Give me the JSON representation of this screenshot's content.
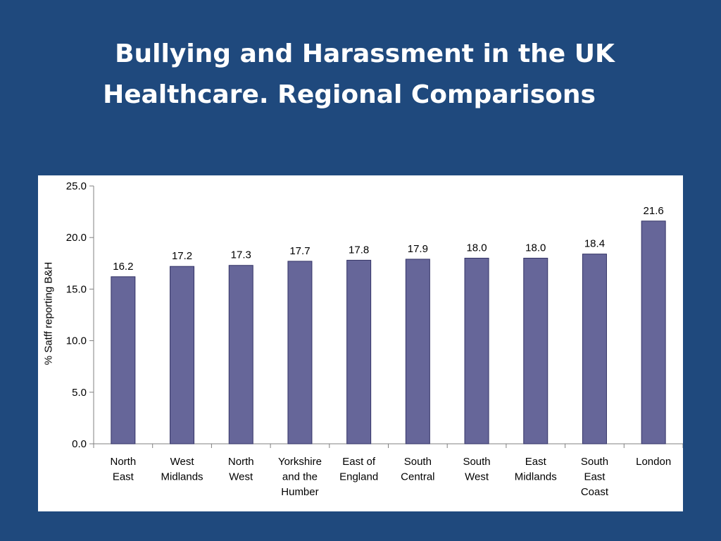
{
  "slide": {
    "title_line1": "Bullying and Harassment in the UK",
    "title_line2": "Healthcare.  Regional Comparisons"
  },
  "colors": {
    "background": "#1f497d",
    "bar": "#666699",
    "bar_outline": "#333366"
  },
  "chart_data": {
    "type": "bar",
    "title": "",
    "xlabel": "",
    "ylabel": "% Satff reporting B&H",
    "ylim": [
      0,
      25
    ],
    "yticks": [
      "0.0",
      "5.0",
      "10.0",
      "15.0",
      "20.0",
      "25.0"
    ],
    "grid": false,
    "categories": [
      [
        "North",
        "East"
      ],
      [
        "West",
        "Midlands"
      ],
      [
        "North",
        "West"
      ],
      [
        "Yorkshire",
        "and the",
        "Humber"
      ],
      [
        "East of",
        "England"
      ],
      [
        "South",
        "Central"
      ],
      [
        "South",
        "West"
      ],
      [
        "East",
        "Midlands"
      ],
      [
        "South",
        "East",
        "Coast"
      ],
      [
        "London"
      ]
    ],
    "values": [
      16.2,
      17.2,
      17.3,
      17.7,
      17.8,
      17.9,
      18.0,
      18.0,
      18.4,
      21.6
    ],
    "data_labels": [
      "16.2",
      "17.2",
      "17.3",
      "17.7",
      "17.8",
      "17.9",
      "18.0",
      "18.0",
      "18.4",
      "21.6"
    ]
  }
}
